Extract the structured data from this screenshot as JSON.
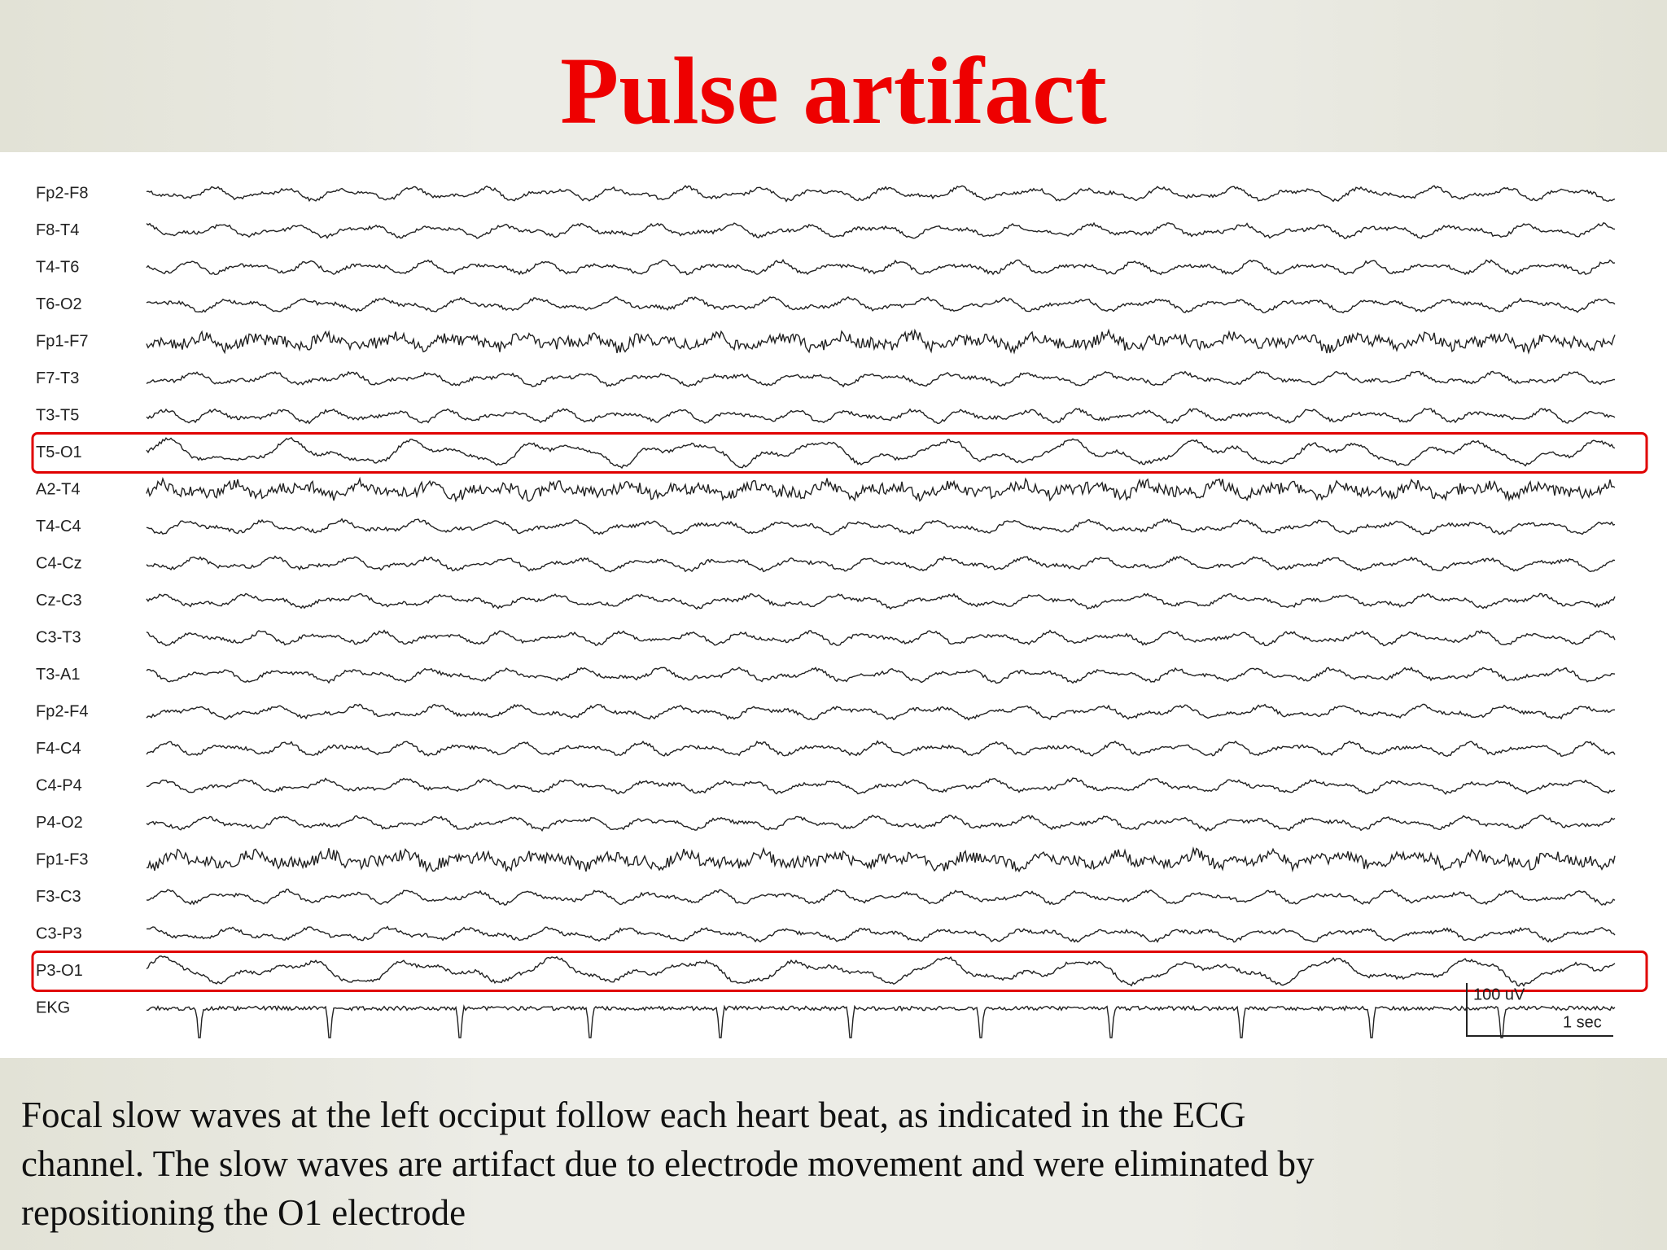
{
  "header": {
    "title": "Pulse artifact"
  },
  "eeg": {
    "channels": [
      "Fp2-F8",
      "F8-T4",
      "T4-T6",
      "T6-O2",
      "Fp1-F7",
      "F7-T3",
      "T3-T5",
      "T5-O1",
      "A2-T4",
      "T4-C4",
      "C4-Cz",
      "Cz-C3",
      "C3-T3",
      "T3-A1",
      "Fp2-F4",
      "F4-C4",
      "C4-P4",
      "P4-O2",
      "Fp1-F3",
      "F3-C3",
      "C3-P3",
      "P3-O1",
      "EKG"
    ],
    "scale": {
      "amplitude": "100 uV",
      "time": "1 sec"
    }
  },
  "caption": {
    "lines": [
      "Focal slow waves at the left occiput follow each heart beat, as indicated in the ECG",
      "channel. The slow waves are artifact due to electrode movement and were eliminated by",
      "repositioning the O1 electrode"
    ]
  }
}
